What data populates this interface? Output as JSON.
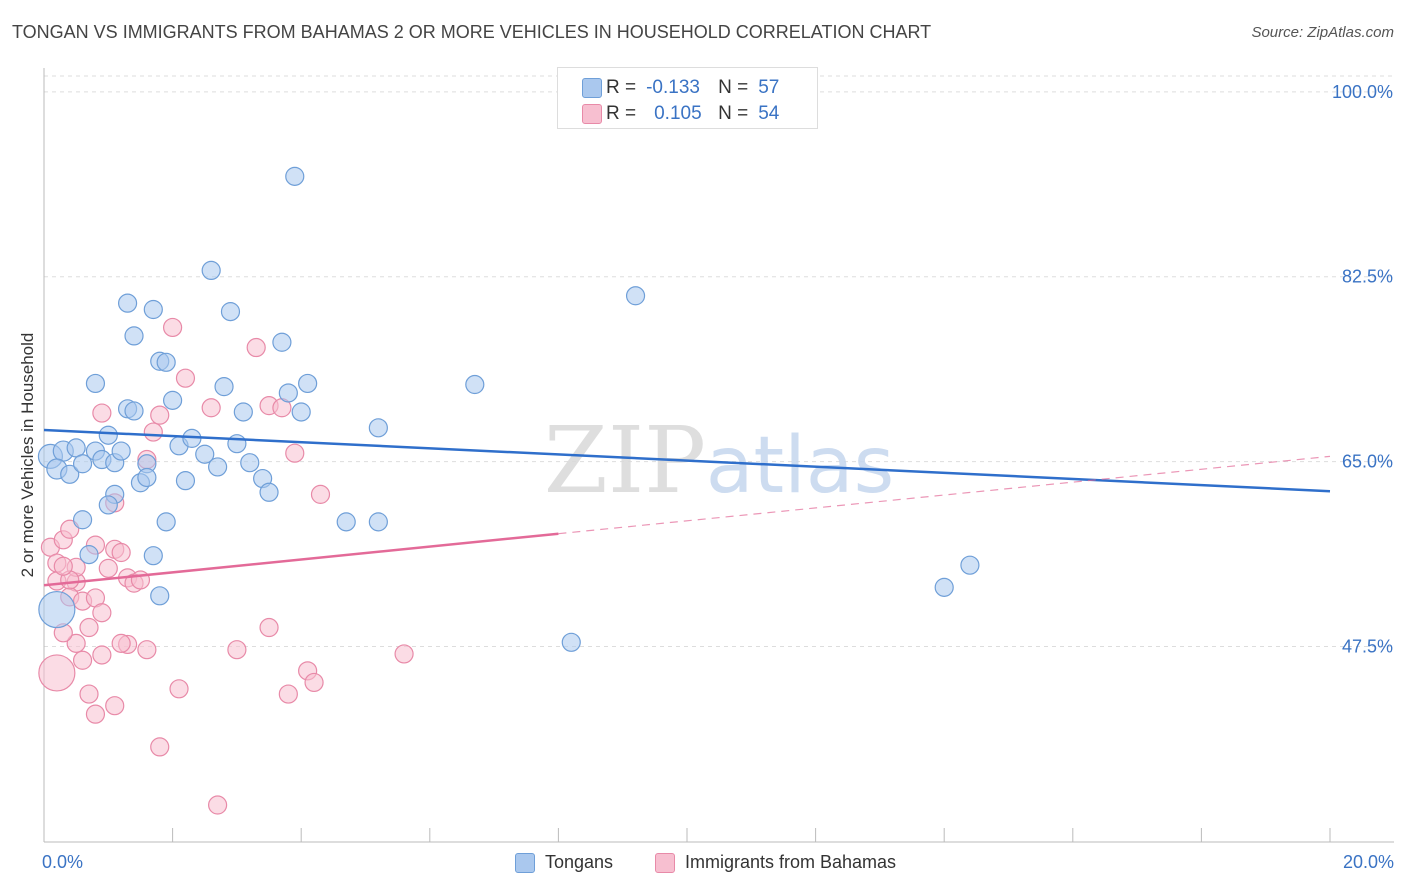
{
  "title": "TONGAN VS IMMIGRANTS FROM BAHAMAS 2 OR MORE VEHICLES IN HOUSEHOLD CORRELATION CHART",
  "source": "Source: ZipAtlas.com",
  "watermark": {
    "zip": "ZIP",
    "atlas": "atlas"
  },
  "legend_top": {
    "rows": [
      {
        "r_label": "R =",
        "r_value": "-0.133",
        "n_label": "N =",
        "n_value": "57"
      },
      {
        "r_label": "R =",
        "r_value": "0.105",
        "n_label": "N =",
        "n_value": "54"
      }
    ]
  },
  "legend_bottom": {
    "items": [
      "Tongans",
      "Immigrants from Bahamas"
    ]
  },
  "x_axis": {
    "min_label": "0.0%",
    "max_label": "20.0%"
  },
  "colors": {
    "tongans_fill": "#aac8ee",
    "tongans_stroke": "#6f9fd8",
    "tongans_line": "#2f6fcb",
    "bahamas_fill": "#f7bfd0",
    "bahamas_stroke": "#e88aa8",
    "bahamas_line": "#e36a98",
    "tick_label": "#3a73c4",
    "grid": "#dddddd"
  },
  "chart_data": {
    "type": "scatter",
    "title": "TONGAN VS IMMIGRANTS FROM BAHAMAS 2 OR MORE VEHICLES IN HOUSEHOLD CORRELATION CHART",
    "xlabel": "",
    "ylabel": "2 or more Vehicles in Household",
    "xlim": [
      0,
      20
    ],
    "ylim": [
      29,
      101.5
    ],
    "y_ticks": [
      47.5,
      65.0,
      82.5,
      100.0
    ],
    "y_tick_labels": [
      "47.5%",
      "65.0%",
      "82.5%",
      "100.0%"
    ],
    "grid": true,
    "legend_position": "top-center",
    "series": [
      {
        "name": "Tongans",
        "r": -0.133,
        "n": 57,
        "trend": {
          "x": [
            0,
            20
          ],
          "y": [
            68.0,
            62.2
          ],
          "dashed_from": null
        },
        "points": [
          [
            0.1,
            65.5,
            12
          ],
          [
            0.3,
            66.0,
            10
          ],
          [
            0.2,
            64.3,
            10
          ],
          [
            0.4,
            63.8,
            9
          ],
          [
            0.5,
            66.3,
            9
          ],
          [
            0.6,
            64.8,
            9
          ],
          [
            0.8,
            66.0,
            9
          ],
          [
            0.9,
            65.2,
            9
          ],
          [
            1.0,
            67.5,
            9
          ],
          [
            1.1,
            64.9,
            9
          ],
          [
            1.2,
            66.0,
            9
          ],
          [
            0.6,
            59.5,
            9
          ],
          [
            0.8,
            72.4,
            9
          ],
          [
            1.1,
            61.9,
            9
          ],
          [
            1.3,
            70.0,
            9
          ],
          [
            1.4,
            69.8,
            9
          ],
          [
            1.5,
            63.0,
            9
          ],
          [
            1.6,
            64.8,
            9
          ],
          [
            1.7,
            56.1,
            9
          ],
          [
            1.8,
            52.3,
            9
          ],
          [
            1.8,
            74.5,
            9
          ],
          [
            1.9,
            74.4,
            9
          ],
          [
            2.0,
            70.8,
            9
          ],
          [
            2.1,
            66.5,
            9
          ],
          [
            2.2,
            63.2,
            9
          ],
          [
            2.3,
            67.2,
            9
          ],
          [
            2.5,
            65.7,
            9
          ],
          [
            2.8,
            72.1,
            9
          ],
          [
            3.0,
            66.7,
            9
          ],
          [
            3.1,
            69.7,
            9
          ],
          [
            3.2,
            64.9,
            9
          ],
          [
            3.4,
            63.4,
            9
          ],
          [
            3.5,
            62.1,
            9
          ],
          [
            3.8,
            71.5,
            9
          ],
          [
            4.0,
            69.7,
            9
          ],
          [
            4.1,
            72.4,
            9
          ],
          [
            3.7,
            76.3,
            9
          ],
          [
            3.9,
            92.0,
            9
          ],
          [
            2.9,
            79.2,
            9
          ],
          [
            2.6,
            83.1,
            9
          ],
          [
            1.3,
            80.0,
            9
          ],
          [
            1.7,
            79.4,
            9
          ],
          [
            1.4,
            76.9,
            9
          ],
          [
            1.0,
            60.9,
            9
          ],
          [
            1.6,
            63.5,
            9
          ],
          [
            2.7,
            64.5,
            9
          ],
          [
            5.2,
            68.2,
            9
          ],
          [
            5.2,
            59.3,
            9
          ],
          [
            4.7,
            59.3,
            9
          ],
          [
            6.7,
            72.3,
            9
          ],
          [
            9.2,
            80.7,
            9
          ],
          [
            8.2,
            47.9,
            9
          ],
          [
            14.0,
            53.1,
            9
          ],
          [
            14.4,
            55.2,
            9
          ],
          [
            0.2,
            51.0,
            18
          ],
          [
            0.7,
            56.2,
            9
          ],
          [
            1.9,
            59.3,
            9
          ]
        ]
      },
      {
        "name": "Immigrants from Bahamas",
        "r": 0.105,
        "n": 54,
        "trend": {
          "x": [
            0,
            20
          ],
          "y": [
            53.3,
            65.5
          ],
          "dashed_from": 8.0
        },
        "points": [
          [
            0.1,
            56.9,
            9
          ],
          [
            0.2,
            55.4,
            9
          ],
          [
            0.3,
            57.6,
            9
          ],
          [
            0.2,
            53.7,
            9
          ],
          [
            0.4,
            58.6,
            9
          ],
          [
            0.5,
            53.6,
            9
          ],
          [
            0.4,
            52.2,
            9
          ],
          [
            0.6,
            51.8,
            9
          ],
          [
            0.7,
            49.3,
            9
          ],
          [
            0.8,
            52.1,
            9
          ],
          [
            0.8,
            57.1,
            9
          ],
          [
            0.9,
            50.7,
            9
          ],
          [
            1.0,
            54.9,
            9
          ],
          [
            1.1,
            56.7,
            9
          ],
          [
            1.2,
            56.4,
            9
          ],
          [
            1.3,
            54.0,
            9
          ],
          [
            1.4,
            53.5,
            9
          ],
          [
            1.5,
            53.8,
            9
          ],
          [
            1.6,
            65.2,
            9
          ],
          [
            1.7,
            67.8,
            9
          ],
          [
            1.8,
            69.4,
            9
          ],
          [
            2.0,
            77.7,
            9
          ],
          [
            2.2,
            72.9,
            9
          ],
          [
            3.3,
            75.8,
            9
          ],
          [
            3.5,
            70.3,
            9
          ],
          [
            3.7,
            70.1,
            9
          ],
          [
            3.9,
            65.8,
            9
          ],
          [
            4.3,
            61.9,
            9
          ],
          [
            0.9,
            69.6,
            9
          ],
          [
            0.5,
            47.8,
            9
          ],
          [
            0.6,
            46.2,
            9
          ],
          [
            0.7,
            43.0,
            9
          ],
          [
            0.8,
            41.1,
            9
          ],
          [
            1.1,
            41.9,
            9
          ],
          [
            1.3,
            47.7,
            9
          ],
          [
            1.6,
            47.2,
            9
          ],
          [
            1.8,
            38.0,
            9
          ],
          [
            2.1,
            43.5,
            9
          ],
          [
            2.7,
            32.5,
            9
          ],
          [
            3.0,
            47.2,
            9
          ],
          [
            3.5,
            49.3,
            9
          ],
          [
            3.8,
            43.0,
            9
          ],
          [
            4.1,
            45.2,
            9
          ],
          [
            4.2,
            44.1,
            9
          ],
          [
            5.6,
            46.8,
            9
          ],
          [
            0.3,
            48.8,
            9
          ],
          [
            0.5,
            55.0,
            9
          ],
          [
            0.9,
            46.7,
            9
          ],
          [
            1.2,
            47.8,
            9
          ],
          [
            0.2,
            45.0,
            18
          ],
          [
            2.6,
            70.1,
            9
          ],
          [
            0.4,
            53.8,
            9
          ],
          [
            0.3,
            55.1,
            9
          ],
          [
            1.1,
            61.1,
            9
          ]
        ]
      }
    ]
  }
}
